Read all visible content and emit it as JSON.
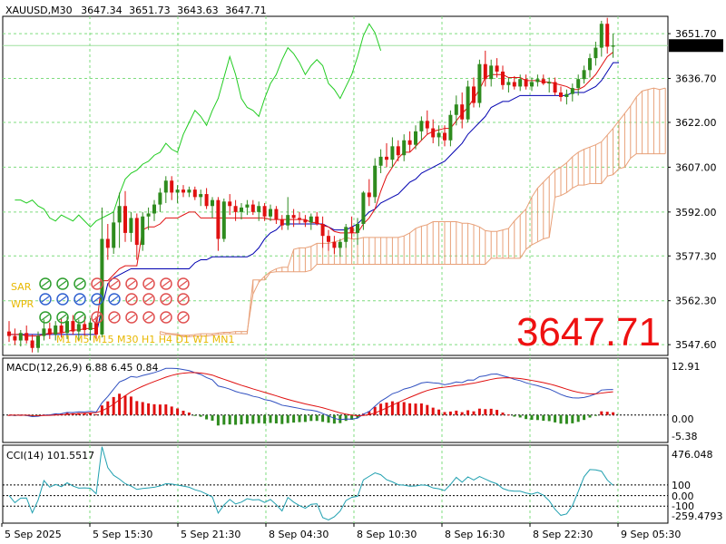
{
  "header": {
    "symbol": "XAUUSD,M30",
    "open": "3647.34",
    "high": "3651.73",
    "low": "3643.63",
    "close": "3647.71"
  },
  "current_price_tag": "3647.71",
  "big_price": "3647.71",
  "indicator_labels": {
    "sar": "SAR",
    "wpr": "WPR",
    "tf": "M1 M5 M15 M30 H1 H4 D1 W1 MN1"
  },
  "macd": {
    "title": "MACD(12,26,9) 6.88 6.45 0.84",
    "y_labels": [
      "12.91",
      "0.00",
      "-5.38"
    ]
  },
  "cci": {
    "title": "CCI(14) 101.5517",
    "y_labels": [
      "476.048",
      "100",
      "0.00",
      "-100",
      "-259.4793"
    ]
  },
  "colors": {
    "bull": "#2e8b1e",
    "bear": "#e01010",
    "tenkan": "#e01010",
    "kijun": "#0000b0",
    "chikou": "#22cc22",
    "cloud": "#e8a078",
    "macd_signal": "#e01010",
    "macd_main": "#3050c0",
    "cci_line": "#20a0b0",
    "big_price": "#ee1111"
  },
  "chart_data": {
    "type": "candlestick",
    "symbol": "XAUUSD",
    "timeframe": "M30",
    "y_ticks": [
      "3651.70",
      "3636.70",
      "3622.00",
      "3607.00",
      "3592.00",
      "3577.30",
      "3562.30",
      "3547.60"
    ],
    "ylim": [
      3544.0,
      3657.5
    ],
    "x_ticks": [
      "5 Sep 2025",
      "5 Sep 15:30",
      "5 Sep 21:30",
      "8 Sep 04:30",
      "8 Sep 10:30",
      "8 Sep 16:30",
      "8 Sep 22:30",
      "9 Sep 05:30"
    ],
    "candles": [
      {
        "o": 3552.0,
        "h": 3555.5,
        "l": 3548.5,
        "c": 3550.5
      },
      {
        "o": 3550.5,
        "h": 3553.0,
        "l": 3547.5,
        "c": 3549.0
      },
      {
        "o": 3549.0,
        "h": 3552.5,
        "l": 3547.0,
        "c": 3551.5
      },
      {
        "o": 3551.5,
        "h": 3554.0,
        "l": 3548.0,
        "c": 3549.0
      },
      {
        "o": 3549.0,
        "h": 3551.0,
        "l": 3545.0,
        "c": 3546.5
      },
      {
        "o": 3546.5,
        "h": 3552.0,
        "l": 3545.0,
        "c": 3550.5
      },
      {
        "o": 3550.5,
        "h": 3556.0,
        "l": 3549.0,
        "c": 3553.0
      },
      {
        "o": 3553.0,
        "h": 3555.0,
        "l": 3549.5,
        "c": 3551.0
      },
      {
        "o": 3551.0,
        "h": 3555.5,
        "l": 3549.0,
        "c": 3554.0
      },
      {
        "o": 3554.0,
        "h": 3556.5,
        "l": 3550.0,
        "c": 3551.5
      },
      {
        "o": 3551.5,
        "h": 3557.0,
        "l": 3549.5,
        "c": 3555.5
      },
      {
        "o": 3555.5,
        "h": 3557.5,
        "l": 3551.0,
        "c": 3552.0
      },
      {
        "o": 3552.0,
        "h": 3556.0,
        "l": 3549.0,
        "c": 3554.5
      },
      {
        "o": 3554.5,
        "h": 3557.0,
        "l": 3550.5,
        "c": 3552.5
      },
      {
        "o": 3552.5,
        "h": 3556.5,
        "l": 3549.0,
        "c": 3555.0
      },
      {
        "o": 3555.0,
        "h": 3557.0,
        "l": 3549.0,
        "c": 3551.0
      },
      {
        "o": 3551.0,
        "h": 3593.5,
        "l": 3550.0,
        "c": 3583.0
      },
      {
        "o": 3583.0,
        "h": 3588.0,
        "l": 3576.0,
        "c": 3580.0
      },
      {
        "o": 3580.0,
        "h": 3592.0,
        "l": 3578.0,
        "c": 3588.5
      },
      {
        "o": 3588.5,
        "h": 3598.5,
        "l": 3580.0,
        "c": 3594.0
      },
      {
        "o": 3594.0,
        "h": 3599.0,
        "l": 3582.0,
        "c": 3585.0
      },
      {
        "o": 3585.0,
        "h": 3592.0,
        "l": 3582.0,
        "c": 3590.0
      },
      {
        "o": 3590.0,
        "h": 3591.5,
        "l": 3576.0,
        "c": 3581.0
      },
      {
        "o": 3581.0,
        "h": 3592.0,
        "l": 3579.0,
        "c": 3590.5
      },
      {
        "o": 3590.5,
        "h": 3593.5,
        "l": 3586.0,
        "c": 3591.5
      },
      {
        "o": 3591.5,
        "h": 3596.0,
        "l": 3589.0,
        "c": 3594.5
      },
      {
        "o": 3594.5,
        "h": 3600.0,
        "l": 3592.0,
        "c": 3598.5
      },
      {
        "o": 3598.5,
        "h": 3604.0,
        "l": 3595.0,
        "c": 3602.5
      },
      {
        "o": 3602.5,
        "h": 3604.0,
        "l": 3596.0,
        "c": 3598.5
      },
      {
        "o": 3598.5,
        "h": 3601.0,
        "l": 3595.0,
        "c": 3599.5
      },
      {
        "o": 3599.5,
        "h": 3601.0,
        "l": 3597.0,
        "c": 3598.5
      },
      {
        "o": 3598.5,
        "h": 3600.5,
        "l": 3597.0,
        "c": 3599.5
      },
      {
        "o": 3599.5,
        "h": 3600.5,
        "l": 3596.0,
        "c": 3597.0
      },
      {
        "o": 3597.0,
        "h": 3599.5,
        "l": 3594.0,
        "c": 3598.0
      },
      {
        "o": 3598.0,
        "h": 3600.0,
        "l": 3593.0,
        "c": 3594.0
      },
      {
        "o": 3594.0,
        "h": 3597.0,
        "l": 3590.0,
        "c": 3596.0
      },
      {
        "o": 3596.0,
        "h": 3597.0,
        "l": 3579.0,
        "c": 3583.0
      },
      {
        "o": 3583.0,
        "h": 3596.5,
        "l": 3582.0,
        "c": 3595.5
      },
      {
        "o": 3595.5,
        "h": 3598.0,
        "l": 3591.0,
        "c": 3594.0
      },
      {
        "o": 3594.0,
        "h": 3596.0,
        "l": 3589.0,
        "c": 3592.0
      },
      {
        "o": 3592.0,
        "h": 3595.0,
        "l": 3589.5,
        "c": 3593.5
      },
      {
        "o": 3593.5,
        "h": 3596.0,
        "l": 3591.0,
        "c": 3594.5
      },
      {
        "o": 3594.5,
        "h": 3596.0,
        "l": 3591.0,
        "c": 3592.0
      },
      {
        "o": 3592.0,
        "h": 3595.5,
        "l": 3589.0,
        "c": 3594.0
      },
      {
        "o": 3594.0,
        "h": 3595.0,
        "l": 3589.0,
        "c": 3590.5
      },
      {
        "o": 3590.5,
        "h": 3594.5,
        "l": 3589.0,
        "c": 3593.0
      },
      {
        "o": 3593.0,
        "h": 3594.0,
        "l": 3588.0,
        "c": 3589.5
      },
      {
        "o": 3589.5,
        "h": 3591.0,
        "l": 3586.0,
        "c": 3587.5
      },
      {
        "o": 3587.5,
        "h": 3597.0,
        "l": 3586.0,
        "c": 3591.0
      },
      {
        "o": 3591.0,
        "h": 3593.0,
        "l": 3587.0,
        "c": 3590.0
      },
      {
        "o": 3590.0,
        "h": 3592.0,
        "l": 3588.0,
        "c": 3589.5
      },
      {
        "o": 3589.5,
        "h": 3591.0,
        "l": 3587.0,
        "c": 3588.5
      },
      {
        "o": 3588.5,
        "h": 3591.5,
        "l": 3586.0,
        "c": 3590.5
      },
      {
        "o": 3590.5,
        "h": 3592.0,
        "l": 3587.5,
        "c": 3588.0
      },
      {
        "o": 3588.0,
        "h": 3590.5,
        "l": 3580.0,
        "c": 3584.0
      },
      {
        "o": 3584.0,
        "h": 3586.0,
        "l": 3579.0,
        "c": 3582.0
      },
      {
        "o": 3582.0,
        "h": 3584.0,
        "l": 3578.0,
        "c": 3580.0
      },
      {
        "o": 3580.0,
        "h": 3583.0,
        "l": 3577.0,
        "c": 3582.0
      },
      {
        "o": 3582.0,
        "h": 3588.0,
        "l": 3580.0,
        "c": 3587.0
      },
      {
        "o": 3587.0,
        "h": 3590.5,
        "l": 3583.0,
        "c": 3585.0
      },
      {
        "o": 3585.0,
        "h": 3590.0,
        "l": 3581.0,
        "c": 3588.0
      },
      {
        "o": 3588.0,
        "h": 3599.0,
        "l": 3586.0,
        "c": 3598.5
      },
      {
        "o": 3598.5,
        "h": 3603.0,
        "l": 3594.0,
        "c": 3597.0
      },
      {
        "o": 3597.0,
        "h": 3610.0,
        "l": 3595.0,
        "c": 3607.5
      },
      {
        "o": 3607.5,
        "h": 3613.0,
        "l": 3605.0,
        "c": 3610.5
      },
      {
        "o": 3610.5,
        "h": 3615.0,
        "l": 3607.0,
        "c": 3609.5
      },
      {
        "o": 3609.5,
        "h": 3617.0,
        "l": 3607.0,
        "c": 3614.0
      },
      {
        "o": 3614.0,
        "h": 3616.0,
        "l": 3609.0,
        "c": 3611.0
      },
      {
        "o": 3611.0,
        "h": 3618.0,
        "l": 3609.0,
        "c": 3616.0
      },
      {
        "o": 3616.0,
        "h": 3619.0,
        "l": 3612.0,
        "c": 3614.5
      },
      {
        "o": 3614.5,
        "h": 3621.0,
        "l": 3613.0,
        "c": 3619.0
      },
      {
        "o": 3619.0,
        "h": 3624.0,
        "l": 3616.0,
        "c": 3622.5
      },
      {
        "o": 3622.5,
        "h": 3626.0,
        "l": 3618.0,
        "c": 3620.0
      },
      {
        "o": 3620.0,
        "h": 3623.0,
        "l": 3615.0,
        "c": 3617.0
      },
      {
        "o": 3617.0,
        "h": 3621.0,
        "l": 3614.0,
        "c": 3618.5
      },
      {
        "o": 3618.5,
        "h": 3621.0,
        "l": 3614.0,
        "c": 3616.0
      },
      {
        "o": 3616.0,
        "h": 3626.0,
        "l": 3614.0,
        "c": 3624.5
      },
      {
        "o": 3624.5,
        "h": 3631.0,
        "l": 3621.0,
        "c": 3628.0
      },
      {
        "o": 3628.0,
        "h": 3632.0,
        "l": 3620.0,
        "c": 3623.0
      },
      {
        "o": 3623.0,
        "h": 3636.0,
        "l": 3622.0,
        "c": 3634.0
      },
      {
        "o": 3634.0,
        "h": 3637.0,
        "l": 3627.0,
        "c": 3628.5
      },
      {
        "o": 3628.5,
        "h": 3643.0,
        "l": 3627.0,
        "c": 3641.5
      },
      {
        "o": 3641.5,
        "h": 3646.0,
        "l": 3634.0,
        "c": 3636.5
      },
      {
        "o": 3636.5,
        "h": 3643.0,
        "l": 3634.0,
        "c": 3641.0
      },
      {
        "o": 3641.0,
        "h": 3643.5,
        "l": 3637.0,
        "c": 3639.0
      },
      {
        "o": 3639.0,
        "h": 3641.0,
        "l": 3633.0,
        "c": 3634.5
      },
      {
        "o": 3634.5,
        "h": 3637.0,
        "l": 3632.0,
        "c": 3635.5
      },
      {
        "o": 3635.5,
        "h": 3637.5,
        "l": 3633.0,
        "c": 3634.0
      },
      {
        "o": 3634.0,
        "h": 3638.0,
        "l": 3632.5,
        "c": 3636.5
      },
      {
        "o": 3636.5,
        "h": 3638.0,
        "l": 3633.0,
        "c": 3634.0
      },
      {
        "o": 3634.0,
        "h": 3637.0,
        "l": 3632.5,
        "c": 3635.5
      },
      {
        "o": 3635.5,
        "h": 3638.0,
        "l": 3634.0,
        "c": 3636.5
      },
      {
        "o": 3636.5,
        "h": 3638.0,
        "l": 3634.5,
        "c": 3635.0
      },
      {
        "o": 3635.0,
        "h": 3637.0,
        "l": 3632.0,
        "c": 3635.5
      },
      {
        "o": 3635.5,
        "h": 3637.0,
        "l": 3631.0,
        "c": 3632.0
      },
      {
        "o": 3632.0,
        "h": 3634.0,
        "l": 3629.0,
        "c": 3630.5
      },
      {
        "o": 3630.5,
        "h": 3633.0,
        "l": 3628.0,
        "c": 3631.5
      },
      {
        "o": 3631.5,
        "h": 3635.0,
        "l": 3629.0,
        "c": 3633.5
      },
      {
        "o": 3633.5,
        "h": 3638.0,
        "l": 3631.0,
        "c": 3636.5
      },
      {
        "o": 3636.5,
        "h": 3641.0,
        "l": 3635.0,
        "c": 3639.5
      },
      {
        "o": 3639.5,
        "h": 3645.0,
        "l": 3637.0,
        "c": 3643.5
      },
      {
        "o": 3643.5,
        "h": 3649.0,
        "l": 3641.0,
        "c": 3647.0
      },
      {
        "o": 3647.0,
        "h": 3656.0,
        "l": 3644.0,
        "c": 3655.0
      },
      {
        "o": 3655.0,
        "h": 3657.0,
        "l": 3645.0,
        "c": 3647.34
      },
      {
        "o": 3647.34,
        "h": 3651.73,
        "l": 3643.63,
        "c": 3647.71
      }
    ],
    "tenkan": [
      3551,
      3551,
      3551,
      3550.5,
      3550.5,
      3550.5,
      3551,
      3551.5,
      3551.5,
      3551.5,
      3552,
      3552.5,
      3552.5,
      3553,
      3553,
      3553,
      3569,
      3569,
      3571,
      3573,
      3574,
      3574,
      3574,
      3586,
      3587,
      3587,
      3588,
      3590,
      3590,
      3590,
      3591,
      3592,
      3592,
      3590,
      3590,
      3590,
      3590,
      3590,
      3590,
      3590,
      3590,
      3590,
      3590,
      3590,
      3590,
      3589.5,
      3589.5,
      3589.5,
      3589.5,
      3589.5,
      3589.5,
      3589.5,
      3588.5,
      3588.5,
      3587.5,
      3587,
      3585.5,
      3585,
      3585,
      3585,
      3585,
      3588,
      3590,
      3593,
      3599,
      3604,
      3607,
      3610,
      3612,
      3612,
      3614,
      3616,
      3618,
      3619,
      3619.5,
      3620,
      3620,
      3622.5,
      3625,
      3627,
      3630,
      3633,
      3637,
      3638,
      3638,
      3638,
      3637,
      3637,
      3637,
      3636,
      3636,
      3636,
      3635.5,
      3635.5,
      3635,
      3634.5,
      3634,
      3633,
      3633,
      3634,
      3636,
      3638,
      3641,
      3644,
      3645.5
    ],
    "kijun": [
      3551,
      3551,
      3551,
      3551,
      3551,
      3551,
      3551,
      3551,
      3551,
      3551,
      3551,
      3551,
      3551,
      3551,
      3551,
      3551,
      3560,
      3568,
      3570,
      3571,
      3572,
      3573,
      3573,
      3573,
      3573,
      3573,
      3573,
      3573,
      3573,
      3573,
      3573,
      3573,
      3575,
      3576,
      3576,
      3577,
      3577,
      3577,
      3577,
      3577,
      3577,
      3577,
      3578,
      3580,
      3583,
      3585,
      3586,
      3588,
      3588,
      3588,
      3588,
      3588,
      3588,
      3588,
      3588,
      3587,
      3586,
      3586,
      3586,
      3587,
      3588,
      3590,
      3592,
      3593,
      3595,
      3596,
      3597,
      3598,
      3600,
      3602,
      3603,
      3605,
      3606,
      3607,
      3608,
      3609,
      3611,
      3613,
      3615,
      3618,
      3620,
      3622,
      3624,
      3627,
      3628,
      3629,
      3629,
      3630,
      3631,
      3631,
      3631,
      3631,
      3631,
      3631,
      3631,
      3631,
      3631,
      3632,
      3632,
      3632,
      3633,
      3634,
      3636,
      3639,
      3642,
      3642
    ],
    "chikou": [
      3596,
      3596,
      3595,
      3596,
      3594,
      3593,
      3590,
      3589,
      3591,
      3590,
      3589,
      3591,
      3589,
      3587,
      3589,
      3590,
      3591,
      3592,
      3598,
      3603,
      3605,
      3606,
      3608,
      3609,
      3611,
      3612,
      3615,
      3613,
      3612,
      3618,
      3622,
      3626,
      3624,
      3621,
      3626,
      3630,
      3637,
      3644,
      3638,
      3630,
      3627,
      3626,
      3624,
      3630,
      3635,
      3638,
      3643,
      3647,
      3645,
      3642,
      3638,
      3641,
      3643,
      3641,
      3635,
      3633,
      3630,
      3634,
      3638,
      3644,
      3651,
      3655,
      3652,
      3646
    ]
  }
}
